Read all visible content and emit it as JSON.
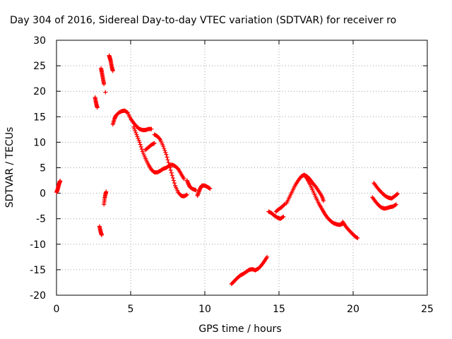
{
  "chart_data": {
    "type": "scatter",
    "title": "Day 304 of 2016, Sidereal Day-to-day VTEC variation (SDTVAR) for receiver ro",
    "xlabel": "GPS time / hours",
    "ylabel": "SDTVAR / TECUs",
    "xlim": [
      0,
      25
    ],
    "ylim": [
      -20,
      30
    ],
    "xticks": [
      "0",
      "5",
      "10",
      "15",
      "20",
      "25"
    ],
    "yticks": [
      "-20",
      "-15",
      "-10",
      "-5",
      "0",
      "5",
      "10",
      "15",
      "20",
      "25",
      "30"
    ],
    "grid": true,
    "marker": "+",
    "marker_color": "#ff0000",
    "series": [
      {
        "segments": [
          [
            [
              0.0,
              0.2
            ],
            [
              0.05,
              0.5
            ],
            [
              0.1,
              1.0
            ],
            [
              0.15,
              1.6
            ],
            [
              0.2,
              2.1
            ],
            [
              0.25,
              2.4
            ]
          ],
          [
            [
              2.6,
              18.8
            ],
            [
              2.65,
              18.0
            ],
            [
              2.7,
              17.3
            ],
            [
              2.75,
              16.8
            ]
          ],
          [
            [
              2.9,
              -6.5
            ],
            [
              2.95,
              -7.2
            ],
            [
              3.0,
              -7.8
            ],
            [
              3.05,
              -8.2
            ]
          ],
          [
            [
              3.0,
              24.5
            ],
            [
              3.05,
              23.8
            ],
            [
              3.1,
              23.0
            ],
            [
              3.15,
              22.2
            ],
            [
              3.2,
              21.4
            ]
          ],
          [
            [
              3.3,
              19.8
            ]
          ],
          [
            [
              3.2,
              -2.2
            ],
            [
              3.25,
              -1.0
            ],
            [
              3.3,
              -0.2
            ],
            [
              3.35,
              0.3
            ]
          ],
          [
            [
              3.55,
              27.0
            ],
            [
              3.6,
              26.5
            ],
            [
              3.65,
              26.0
            ],
            [
              3.7,
              25.2
            ],
            [
              3.75,
              24.5
            ],
            [
              3.8,
              24.0
            ]
          ],
          [
            [
              3.8,
              13.5
            ],
            [
              3.9,
              14.5
            ],
            [
              4.0,
              15.2
            ],
            [
              4.2,
              15.8
            ],
            [
              4.4,
              16.1
            ],
            [
              4.6,
              16.2
            ],
            [
              4.8,
              15.8
            ],
            [
              5.0,
              14.6
            ],
            [
              5.2,
              13.8
            ],
            [
              5.4,
              13.1
            ],
            [
              5.6,
              12.6
            ],
            [
              5.8,
              12.4
            ],
            [
              6.0,
              12.4
            ],
            [
              6.2,
              12.6
            ],
            [
              6.4,
              12.6
            ]
          ],
          [
            [
              5.2,
              13.0
            ],
            [
              5.4,
              11.5
            ],
            [
              5.6,
              10.0
            ],
            [
              5.8,
              8.2
            ],
            [
              6.0,
              6.8
            ],
            [
              6.2,
              5.6
            ],
            [
              6.4,
              4.6
            ],
            [
              6.6,
              4.1
            ],
            [
              6.8,
              4.1
            ],
            [
              7.0,
              4.4
            ],
            [
              7.2,
              4.8
            ],
            [
              7.4,
              5.0
            ],
            [
              7.6,
              5.4
            ],
            [
              7.8,
              5.6
            ],
            [
              8.0,
              5.3
            ],
            [
              8.2,
              4.8
            ],
            [
              8.4,
              3.8
            ],
            [
              8.6,
              2.8
            ]
          ],
          [
            [
              6.0,
              8.5
            ],
            [
              6.2,
              9.0
            ],
            [
              6.4,
              9.5
            ],
            [
              6.6,
              9.8
            ]
          ],
          [
            [
              6.6,
              11.5
            ],
            [
              6.8,
              11.2
            ],
            [
              7.0,
              10.5
            ],
            [
              7.2,
              9.2
            ],
            [
              7.4,
              7.6
            ],
            [
              7.6,
              5.5
            ],
            [
              7.8,
              3.5
            ],
            [
              8.0,
              1.5
            ],
            [
              8.2,
              0.2
            ],
            [
              8.4,
              -0.5
            ],
            [
              8.6,
              -0.6
            ],
            [
              8.8,
              -0.3
            ]
          ],
          [
            [
              8.8,
              2.5
            ],
            [
              8.9,
              1.8
            ],
            [
              9.0,
              1.2
            ],
            [
              9.2,
              0.8
            ],
            [
              9.4,
              0.6
            ]
          ],
          [
            [
              9.5,
              -0.5
            ],
            [
              9.6,
              0.3
            ],
            [
              9.7,
              1.0
            ],
            [
              9.8,
              1.5
            ],
            [
              10.0,
              1.5
            ],
            [
              10.2,
              1.2
            ],
            [
              10.35,
              0.9
            ]
          ],
          [
            [
              11.8,
              -17.8
            ],
            [
              12.0,
              -17.2
            ],
            [
              12.2,
              -16.6
            ],
            [
              12.4,
              -16.1
            ],
            [
              12.6,
              -15.8
            ],
            [
              12.8,
              -15.4
            ],
            [
              13.0,
              -15.0
            ],
            [
              13.2,
              -14.9
            ],
            [
              13.4,
              -15.1
            ],
            [
              13.6,
              -14.8
            ],
            [
              13.8,
              -14.2
            ],
            [
              14.0,
              -13.4
            ],
            [
              14.2,
              -12.5
            ]
          ],
          [
            [
              14.3,
              -3.6
            ],
            [
              14.5,
              -3.9
            ],
            [
              14.7,
              -4.4
            ],
            [
              14.9,
              -4.8
            ],
            [
              15.1,
              -5.0
            ],
            [
              15.3,
              -4.6
            ]
          ],
          [
            [
              14.8,
              -3.6
            ],
            [
              15.0,
              -3.1
            ],
            [
              15.2,
              -2.7
            ],
            [
              15.4,
              -2.1
            ]
          ],
          [
            [
              15.5,
              -2.0
            ],
            [
              15.7,
              -0.8
            ],
            [
              15.9,
              0.4
            ],
            [
              16.1,
              1.6
            ],
            [
              16.3,
              2.5
            ],
            [
              16.5,
              3.3
            ],
            [
              16.7,
              3.6
            ],
            [
              16.9,
              3.3
            ],
            [
              17.1,
              2.7
            ],
            [
              17.3,
              1.9
            ],
            [
              17.5,
              1.2
            ],
            [
              17.7,
              0.3
            ],
            [
              17.9,
              -0.6
            ],
            [
              18.0,
              -1.5
            ]
          ],
          [
            [
              16.7,
              3.6
            ],
            [
              16.9,
              2.8
            ],
            [
              17.1,
              1.7
            ],
            [
              17.3,
              0.4
            ],
            [
              17.5,
              -0.9
            ],
            [
              17.7,
              -2.1
            ],
            [
              17.9,
              -3.1
            ],
            [
              18.1,
              -4.1
            ],
            [
              18.3,
              -4.9
            ],
            [
              18.5,
              -5.5
            ],
            [
              18.7,
              -5.9
            ],
            [
              18.9,
              -6.1
            ],
            [
              19.1,
              -6.2
            ],
            [
              19.3,
              -6.0
            ]
          ],
          [
            [
              19.3,
              -5.6
            ],
            [
              19.5,
              -6.5
            ],
            [
              19.7,
              -7.2
            ],
            [
              19.9,
              -7.8
            ],
            [
              20.1,
              -8.4
            ],
            [
              20.3,
              -8.8
            ]
          ],
          [
            [
              21.3,
              -0.8
            ],
            [
              21.5,
              -1.6
            ],
            [
              21.7,
              -2.3
            ],
            [
              21.9,
              -2.8
            ],
            [
              22.1,
              -3.0
            ],
            [
              22.3,
              -2.9
            ],
            [
              22.5,
              -2.7
            ],
            [
              22.7,
              -2.6
            ],
            [
              22.9,
              -2.2
            ]
          ],
          [
            [
              21.4,
              2.0
            ],
            [
              21.6,
              1.2
            ],
            [
              21.8,
              0.5
            ],
            [
              22.0,
              -0.1
            ],
            [
              22.2,
              -0.6
            ],
            [
              22.4,
              -0.9
            ],
            [
              22.6,
              -1.0
            ],
            [
              22.8,
              -0.6
            ],
            [
              23.0,
              -0.1
            ]
          ]
        ]
      }
    ]
  }
}
